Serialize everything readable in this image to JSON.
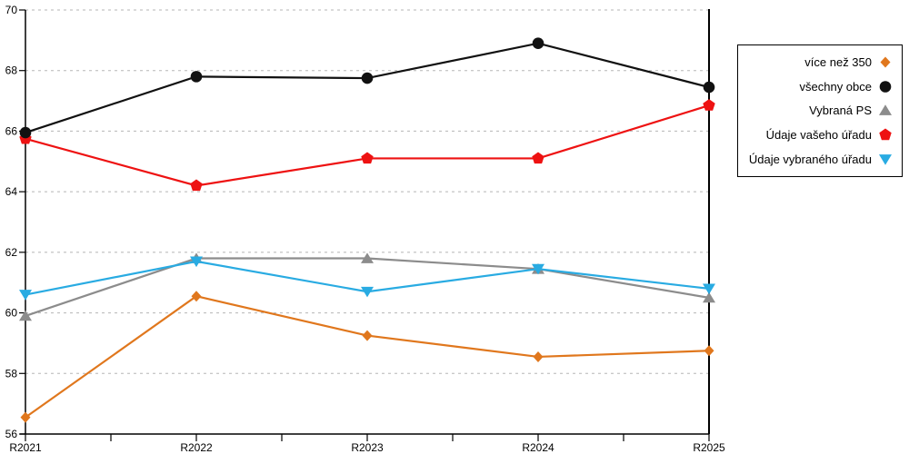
{
  "chart_data": {
    "type": "line",
    "title": "",
    "xlabel": "",
    "ylabel": "",
    "categories": [
      "R2021",
      "R2022",
      "R2023",
      "R2024",
      "R2025"
    ],
    "yticks": [
      "56",
      "58",
      "60",
      "62",
      "64",
      "66",
      "68",
      "70"
    ],
    "ylim": [
      56,
      70
    ],
    "ytick_step": 2,
    "grid": "horizontal-dashed",
    "legend_position": "right",
    "series": [
      {
        "name": "více než 350",
        "color": "#e0771d",
        "marker": "diamond",
        "values": [
          56.55,
          60.55,
          59.25,
          58.55,
          58.75
        ]
      },
      {
        "name": "všechny obce",
        "color": "#111111",
        "marker": "circle",
        "values": [
          65.95,
          67.8,
          67.75,
          68.9,
          67.45
        ]
      },
      {
        "name": "Vybraná PS",
        "color": "#8c8c8c",
        "marker": "triangle-up",
        "values": [
          59.9,
          61.8,
          61.8,
          61.45,
          60.5
        ]
      },
      {
        "name": "Údaje vašeho úřadu",
        "color": "#ee1212",
        "marker": "pentagon",
        "values": [
          65.75,
          64.2,
          65.1,
          65.1,
          66.85
        ]
      },
      {
        "name": "Údaje vybraného úřadu",
        "color": "#29abe2",
        "marker": "triangle-down",
        "values": [
          60.6,
          61.7,
          60.7,
          61.45,
          60.8
        ]
      }
    ],
    "colors": {
      "gridline": "#b5b5b5",
      "axis": "#000000",
      "background": "#ffffff"
    }
  }
}
